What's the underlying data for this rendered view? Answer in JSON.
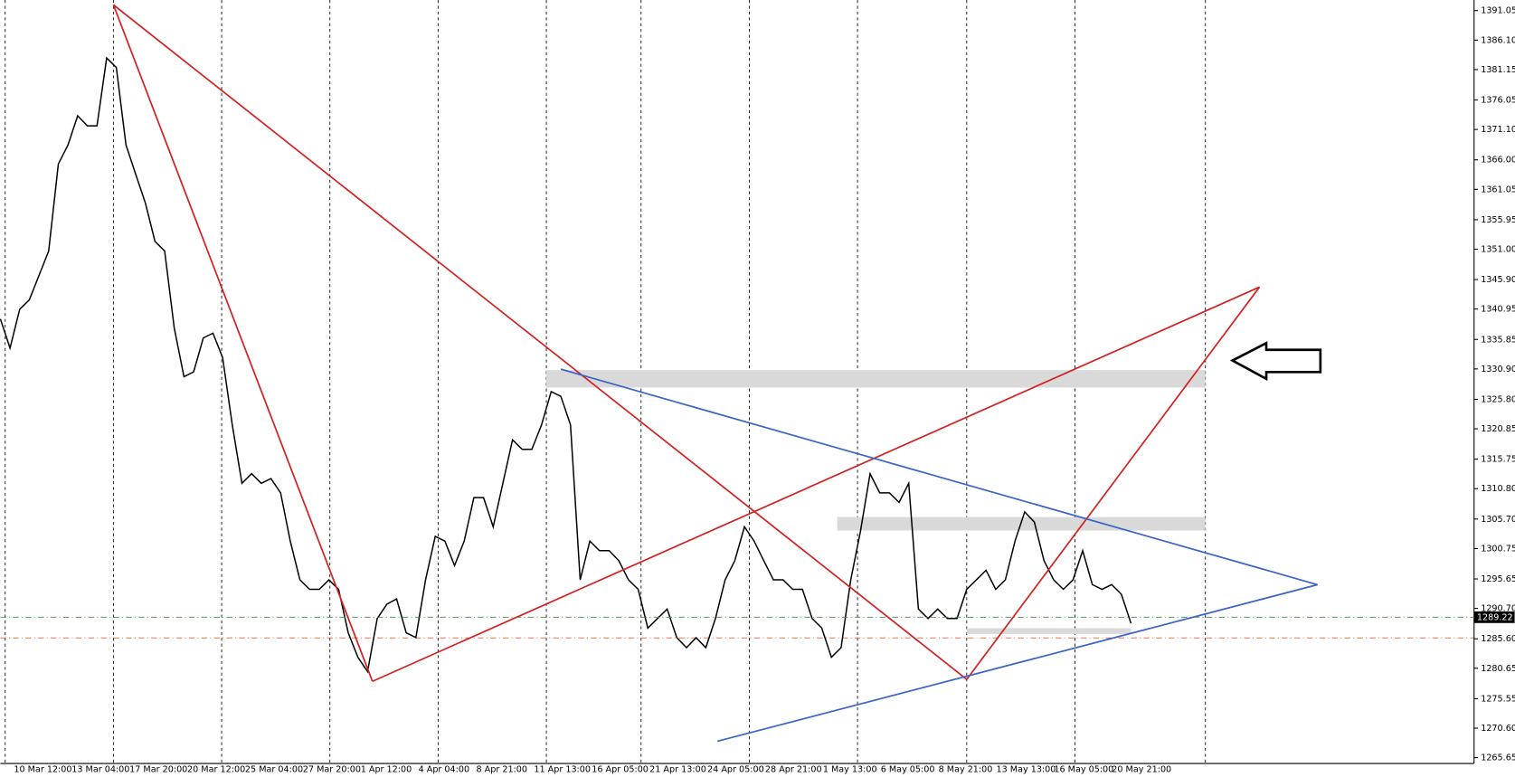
{
  "chart_data": {
    "type": "line",
    "color": "#000000",
    "x_labels": [
      "10 Mar 12:00",
      "13 Mar 04:00",
      "17 Mar 20:00",
      "20 Mar 12:00",
      "25 Mar 04:00",
      "27 Mar 20:00",
      "1 Apr 12:00",
      "4 Apr 04:00",
      "8 Apr 21:00",
      "11 Apr 13:00",
      "16 Apr 05:00",
      "21 Apr 13:00",
      "24 Apr 05:00",
      "28 Apr 21:00",
      "1 May 13:00",
      "6 May 05:00",
      "8 May 21:00",
      "13 May 13:00",
      "16 May 05:00",
      "20 May 21:00"
    ],
    "values": [
      1339.3,
      1334.4,
      1340.9,
      1342.5,
      1346.6,
      1350.7,
      1365.3,
      1368.5,
      1373.4,
      1371.7,
      1371.7,
      1383.1,
      1381.5,
      1368.5,
      1363.6,
      1358.8,
      1352.3,
      1350.7,
      1337.7,
      1329.6,
      1330.4,
      1336.1,
      1336.9,
      1332.8,
      1321.5,
      1311.7,
      1313.3,
      1311.7,
      1312.5,
      1310.1,
      1302.0,
      1295.5,
      1293.9,
      1293.9,
      1295.5,
      1293.9,
      1286.6,
      1282.5,
      1280.1,
      1289.0,
      1291.4,
      1292.3,
      1286.6,
      1285.8,
      1295.5,
      1302.8,
      1302.0,
      1297.9,
      1302.0,
      1309.3,
      1309.3,
      1304.4,
      1311.7,
      1319.0,
      1317.4,
      1317.4,
      1321.5,
      1327.1,
      1326.3,
      1321.5,
      1295.5,
      1302.0,
      1300.4,
      1300.4,
      1298.7,
      1295.5,
      1293.9,
      1287.4,
      1289.0,
      1290.6,
      1285.8,
      1284.1,
      1285.8,
      1284.1,
      1289.0,
      1295.5,
      1298.7,
      1304.4,
      1302.0,
      1298.7,
      1295.5,
      1295.5,
      1293.9,
      1293.9,
      1289.0,
      1287.4,
      1282.5,
      1284.1,
      1295.5,
      1303.6,
      1313.3,
      1310.1,
      1310.1,
      1308.5,
      1311.7,
      1290.6,
      1289.0,
      1290.6,
      1289.0,
      1289.0,
      1293.9,
      1295.5,
      1297.1,
      1293.9,
      1295.5,
      1302.0,
      1306.9,
      1305.2,
      1298.7,
      1295.5,
      1293.9,
      1295.5,
      1300.4,
      1294.7,
      1293.9,
      1294.7,
      1293.1,
      1288.2
    ],
    "ylim": [
      1264.67,
      1392.83
    ],
    "yticks": [
      1391.05,
      {
        "value": 1386.1,
        "label": "1386.10"
      },
      1381.15,
      1376.05,
      {
        "value": 1371.1,
        "label": "1371.10"
      },
      {
        "value": 1366,
        "label": "1366.00"
      },
      1361.05,
      1355.95,
      {
        "value": 1351,
        "label": "1351.00"
      },
      {
        "value": 1345.9,
        "label": "1345.90"
      },
      1340.95,
      1335.85,
      {
        "value": 1330.9,
        "label": "1330.90"
      },
      {
        "value": 1325.8,
        "label": "1325.80"
      },
      1320.85,
      1315.75,
      {
        "value": 1310.8,
        "label": "1310.80"
      },
      {
        "value": 1305.7,
        "label": "1305.70"
      },
      1300.75,
      1295.65,
      {
        "value": 1290.7,
        "label": "1290.70"
      },
      {
        "value": 1285.6,
        "label": "1285.60"
      },
      1280.65,
      1275.55,
      {
        "value": 1270.6,
        "label": "1270.60"
      },
      1265.65
    ],
    "current_price": 1289.22
  }
}
